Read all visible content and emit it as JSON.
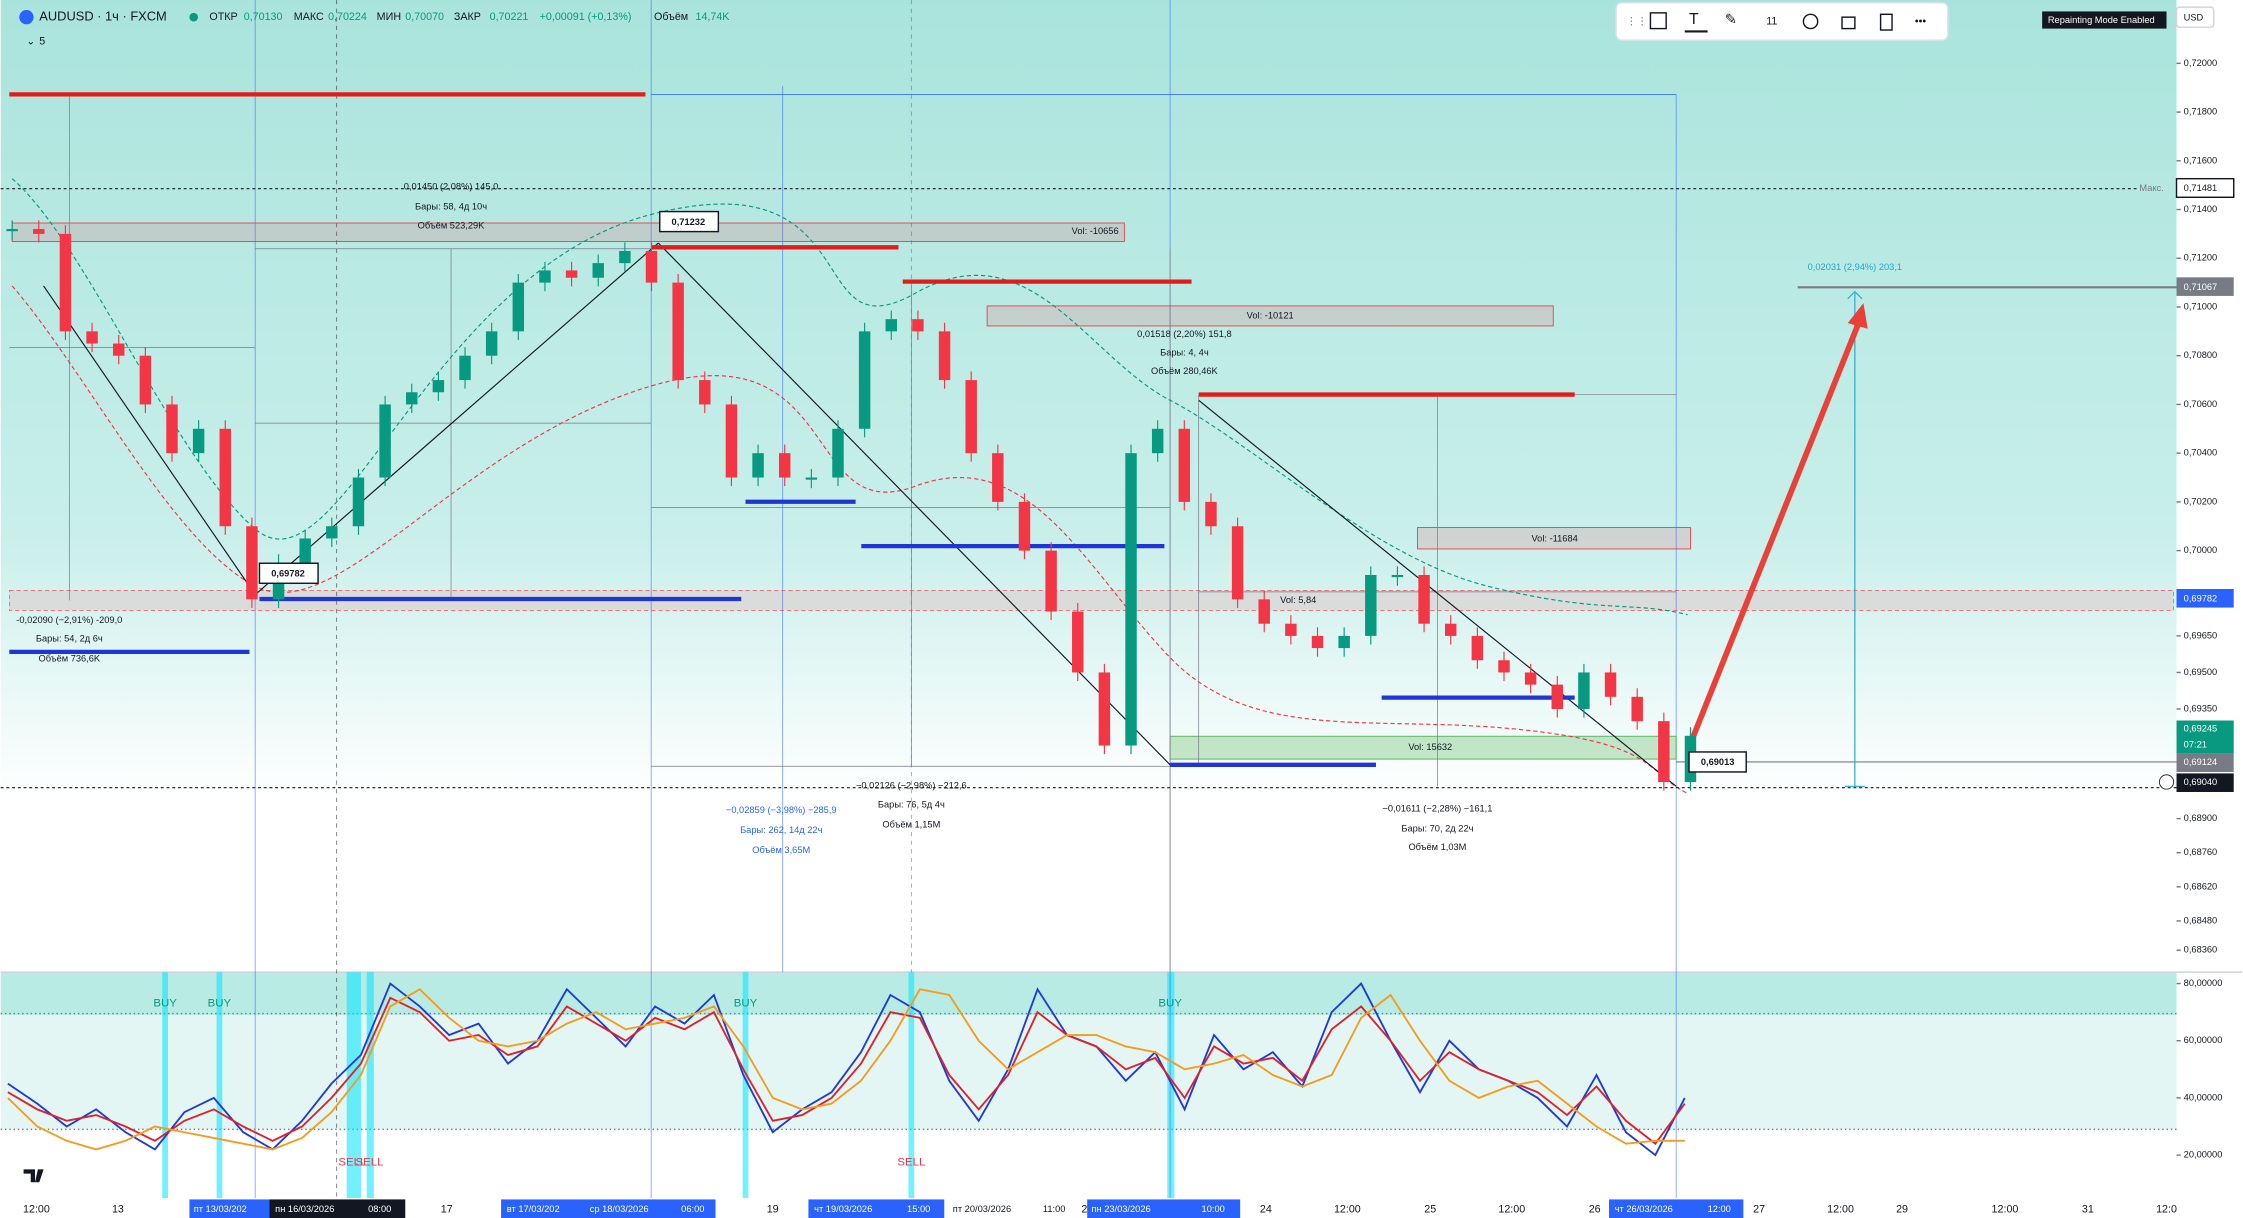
{
  "header": {
    "symbol": "AUDUSD · 1ч · FXCM",
    "open_label": "ОТКР",
    "open": "0,70130",
    "high_label": "МАКС",
    "high": "0,70224",
    "low_label": "МИН",
    "low": "0,70070",
    "close_label": "ЗАКР",
    "close": "0,70221",
    "change": "+0,00091 (+0,13%)",
    "volume_label": "Объём",
    "volume": "14,74K",
    "indicators": "5"
  },
  "toolbar": {
    "font_size": "11",
    "badge": "Repainting Mode Enabled",
    "currency": "USD"
  },
  "chart_data": [
    {
      "type": "candlestick",
      "up_color": "#089981",
      "down_color": "#f23645",
      "values": [
        0.7132,
        0.713,
        0.709,
        0.7085,
        0.708,
        0.706,
        0.704,
        0.705,
        0.701,
        0.698,
        0.6995,
        0.7005,
        0.701,
        0.703,
        0.706,
        0.7065,
        0.707,
        0.708,
        0.709,
        0.711,
        0.7115,
        0.7112,
        0.7118,
        0.7123,
        0.711,
        0.707,
        0.706,
        0.703,
        0.704,
        0.703,
        0.703,
        0.705,
        0.709,
        0.7095,
        0.709,
        0.707,
        0.704,
        0.702,
        0.7,
        0.6975,
        0.695,
        0.692,
        0.704,
        0.705,
        0.702,
        0.701,
        0.698,
        0.697,
        0.6965,
        0.696,
        0.6965,
        0.699,
        0.699,
        0.697,
        0.6965,
        0.6955,
        0.695,
        0.6945,
        0.6935,
        0.695,
        0.694,
        0.693,
        0.6905,
        0.6924
      ],
      "ylim": [
        0.6827,
        0.7226
      ],
      "yticks": [
        {
          "value": 0.72,
          "label": "0,72000"
        },
        {
          "value": 0.718,
          "label": "0,71800"
        },
        {
          "value": 0.716,
          "label": "0,71600"
        },
        {
          "value": 0.714,
          "label": "0,71400"
        },
        {
          "value": 0.712,
          "label": "0,71200"
        },
        {
          "value": 0.71,
          "label": "0,71000"
        },
        {
          "value": 0.708,
          "label": "0,70800"
        },
        {
          "value": 0.706,
          "label": "0,70600"
        },
        {
          "value": 0.704,
          "label": "0,70400"
        },
        {
          "value": 0.702,
          "label": "0,70200"
        },
        {
          "value": 0.7,
          "label": "0,70000"
        },
        {
          "value": 0.6965,
          "label": "0,69650"
        },
        {
          "value": 0.695,
          "label": "0,69500"
        },
        {
          "value": 0.6935,
          "label": "0,69350"
        },
        {
          "value": 0.689,
          "label": "0,68900"
        },
        {
          "value": 0.6876,
          "label": "0,68760"
        },
        {
          "value": 0.6862,
          "label": "0,68620"
        },
        {
          "value": 0.6848,
          "label": "0,68480"
        },
        {
          "value": 0.6836,
          "label": "0,68360"
        }
      ]
    },
    {
      "type": "line",
      "series": [
        {
          "name": "K",
          "color": "#1e3bd6",
          "values": [
            45,
            38,
            30,
            36,
            28,
            22,
            35,
            40,
            28,
            22,
            32,
            45,
            55,
            80,
            72,
            62,
            66,
            52,
            60,
            78,
            68,
            58,
            72,
            66,
            76,
            48,
            28,
            36,
            42,
            56,
            76,
            70,
            46,
            32,
            50,
            78,
            62,
            58,
            46,
            56,
            36,
            62,
            50,
            56,
            44,
            70,
            80,
            60,
            42,
            60,
            50,
            46,
            40,
            30,
            48,
            28,
            20,
            40
          ]
        },
        {
          "name": "D",
          "color": "#e0202a",
          "values": [
            42,
            36,
            32,
            34,
            30,
            25,
            32,
            36,
            30,
            25,
            30,
            40,
            52,
            75,
            70,
            60,
            62,
            55,
            58,
            72,
            66,
            60,
            68,
            64,
            70,
            50,
            32,
            34,
            40,
            52,
            70,
            68,
            48,
            36,
            48,
            70,
            62,
            58,
            50,
            54,
            40,
            58,
            52,
            54,
            46,
            64,
            72,
            60,
            46,
            56,
            50,
            46,
            42,
            34,
            44,
            32,
            24,
            38
          ]
        },
        {
          "name": "Signal",
          "color": "#f39c1e",
          "values": [
            40,
            30,
            25,
            22,
            25,
            30,
            28,
            26,
            24,
            22,
            26,
            35,
            48,
            72,
            78,
            68,
            60,
            58,
            60,
            66,
            70,
            64,
            66,
            68,
            72,
            58,
            40,
            36,
            38,
            46,
            60,
            78,
            76,
            60,
            50,
            56,
            62,
            62,
            58,
            56,
            50,
            52,
            55,
            48,
            44,
            48,
            68,
            76,
            60,
            46,
            40,
            44,
            46,
            38,
            30,
            24,
            25,
            25
          ]
        }
      ],
      "ylim": [
        5,
        84
      ],
      "yticks": [
        {
          "value": 80,
          "label": "80,00000"
        },
        {
          "value": 60,
          "label": "60,00000"
        },
        {
          "value": 40,
          "label": "40,00000"
        },
        {
          "value": 20,
          "label": "20,00000"
        }
      ]
    }
  ],
  "annotations": [
    "0,01450 (2,08%) 145,0",
    "Бары: 58, 4д 10ч",
    "Объём 523,29K",
    "Vol: -10656",
    "0,71232",
    "0,01518 (2,20%) 151,8",
    "Бары: 4, 4ч",
    "Объём 280,46K",
    "Vol: -10121",
    "0,69782",
    "-0,02090 (−2,91%) -209,0",
    "Бары: 54, 2д 6ч",
    "Объём 736,6K",
    "Vol: -11684",
    "Vol: 15632",
    "0,69013",
    "−0,02859 (−3,98%) −285,9",
    "Бары: 262, 14д 22ч",
    "Объём 3,65M",
    "−0,02126 (−2,98%) −212,6",
    "Бары: 76, 5д 4ч",
    "Объём 1,15M",
    "−0,01611 (−2,28%) −161,1",
    "Бары: 70, 2д 22ч",
    "Объём 1,03M",
    "0,02031 (2,94%) 203,1",
    "Vol: 5,84"
  ],
  "signals": [
    "BUY",
    "BUY",
    "BUY",
    "BUY",
    "SELL",
    "SELL",
    "SELL"
  ],
  "price_labels": {
    "max_label": "Макс.",
    "max": "0,71481",
    "target": "0,71067",
    "level": "0,69782",
    "last": "0,69245",
    "countdown": "07:21",
    "line": "0,69124",
    "low": "0,69040"
  },
  "time_axis": [
    "12:00",
    "13",
    "пт 13/03/202",
    "пн 16/03/2026",
    "08:00",
    "17",
    "вт 17/03/202",
    "ср 18/03/2026",
    "06:00",
    "19",
    "чт 19/03/2026",
    "15:00",
    "пт 20/03/2026",
    "11:00",
    "2",
    "пн 23/03/2026",
    "10:00",
    "24",
    "12:00",
    "25",
    "12:00",
    "26",
    "чт 26/03/2026",
    "12:00",
    "27",
    "12:00",
    "29",
    "12:00",
    "31",
    "12:0"
  ]
}
